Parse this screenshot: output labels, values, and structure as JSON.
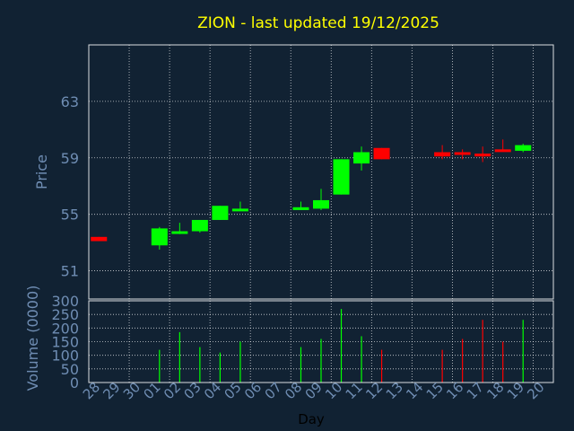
{
  "title": "ZION - last updated 19/12/2025",
  "colors": {
    "background": "#112233",
    "title": "#ffff00",
    "axis_text": "#6f8db3",
    "label_text": "#000000",
    "grid": "#ffffff",
    "frame": "#ffffff",
    "up": "#00ff00",
    "down": "#ff0000"
  },
  "chart_data": [
    {
      "type": "candlestick",
      "ylabel": "Price",
      "ylim": [
        49,
        67
      ],
      "yticks": [
        51,
        55,
        59,
        63
      ],
      "grid": true,
      "candles": [
        {
          "x": "28",
          "open": 53.4,
          "high": 53.4,
          "low": 53.1,
          "close": 53.1
        },
        {
          "x": "01",
          "open": 52.8,
          "high": 54.1,
          "low": 52.5,
          "close": 54.0
        },
        {
          "x": "02",
          "open": 53.7,
          "high": 54.4,
          "low": 53.6,
          "close": 53.8
        },
        {
          "x": "03",
          "open": 53.8,
          "high": 54.6,
          "low": 53.7,
          "close": 54.6
        },
        {
          "x": "04",
          "open": 54.6,
          "high": 55.6,
          "low": 54.6,
          "close": 55.6
        },
        {
          "x": "05",
          "open": 55.3,
          "high": 55.9,
          "low": 55.3,
          "close": 55.4
        },
        {
          "x": "08",
          "open": 55.3,
          "high": 55.9,
          "low": 55.3,
          "close": 55.5
        },
        {
          "x": "09",
          "open": 55.4,
          "high": 56.8,
          "low": 55.3,
          "close": 56.0
        },
        {
          "x": "10",
          "open": 56.4,
          "high": 58.9,
          "low": 56.4,
          "close": 58.9
        },
        {
          "x": "11",
          "open": 58.6,
          "high": 59.8,
          "low": 58.1,
          "close": 59.4
        },
        {
          "x": "12",
          "open": 59.7,
          "high": 59.7,
          "low": 58.9,
          "close": 58.9
        },
        {
          "x": "15",
          "open": 59.4,
          "high": 59.9,
          "low": 58.9,
          "close": 59.1
        },
        {
          "x": "16",
          "open": 59.4,
          "high": 59.6,
          "low": 58.9,
          "close": 59.3
        },
        {
          "x": "17",
          "open": 59.3,
          "high": 59.8,
          "low": 58.7,
          "close": 59.1
        },
        {
          "x": "18",
          "open": 59.6,
          "high": 60.3,
          "low": 59.5,
          "close": 59.5
        },
        {
          "x": "19",
          "open": 59.5,
          "high": 60.0,
          "low": 59.4,
          "close": 59.9
        }
      ]
    },
    {
      "type": "bar",
      "ylabel": "Volume (0000)",
      "xlabel": "Day",
      "ylim": [
        0,
        300
      ],
      "yticks": [
        0,
        50,
        100,
        150,
        200,
        250,
        300
      ],
      "grid": true,
      "categories": [
        "28",
        "29",
        "30",
        "01",
        "02",
        "03",
        "04",
        "05",
        "06",
        "07",
        "08",
        "09",
        "10",
        "11",
        "12",
        "13",
        "14",
        "15",
        "16",
        "17",
        "18",
        "19",
        "20"
      ],
      "values": [
        0,
        0,
        0,
        120,
        185,
        130,
        110,
        150,
        0,
        0,
        130,
        160,
        270,
        170,
        120,
        0,
        0,
        120,
        160,
        230,
        150,
        230,
        0
      ],
      "directions": [
        "down",
        "",
        "",
        "up",
        "up",
        "up",
        "up",
        "up",
        "",
        "",
        "up",
        "up",
        "up",
        "up",
        "down",
        "",
        "",
        "down",
        "down",
        "down",
        "down",
        "up",
        ""
      ]
    }
  ]
}
